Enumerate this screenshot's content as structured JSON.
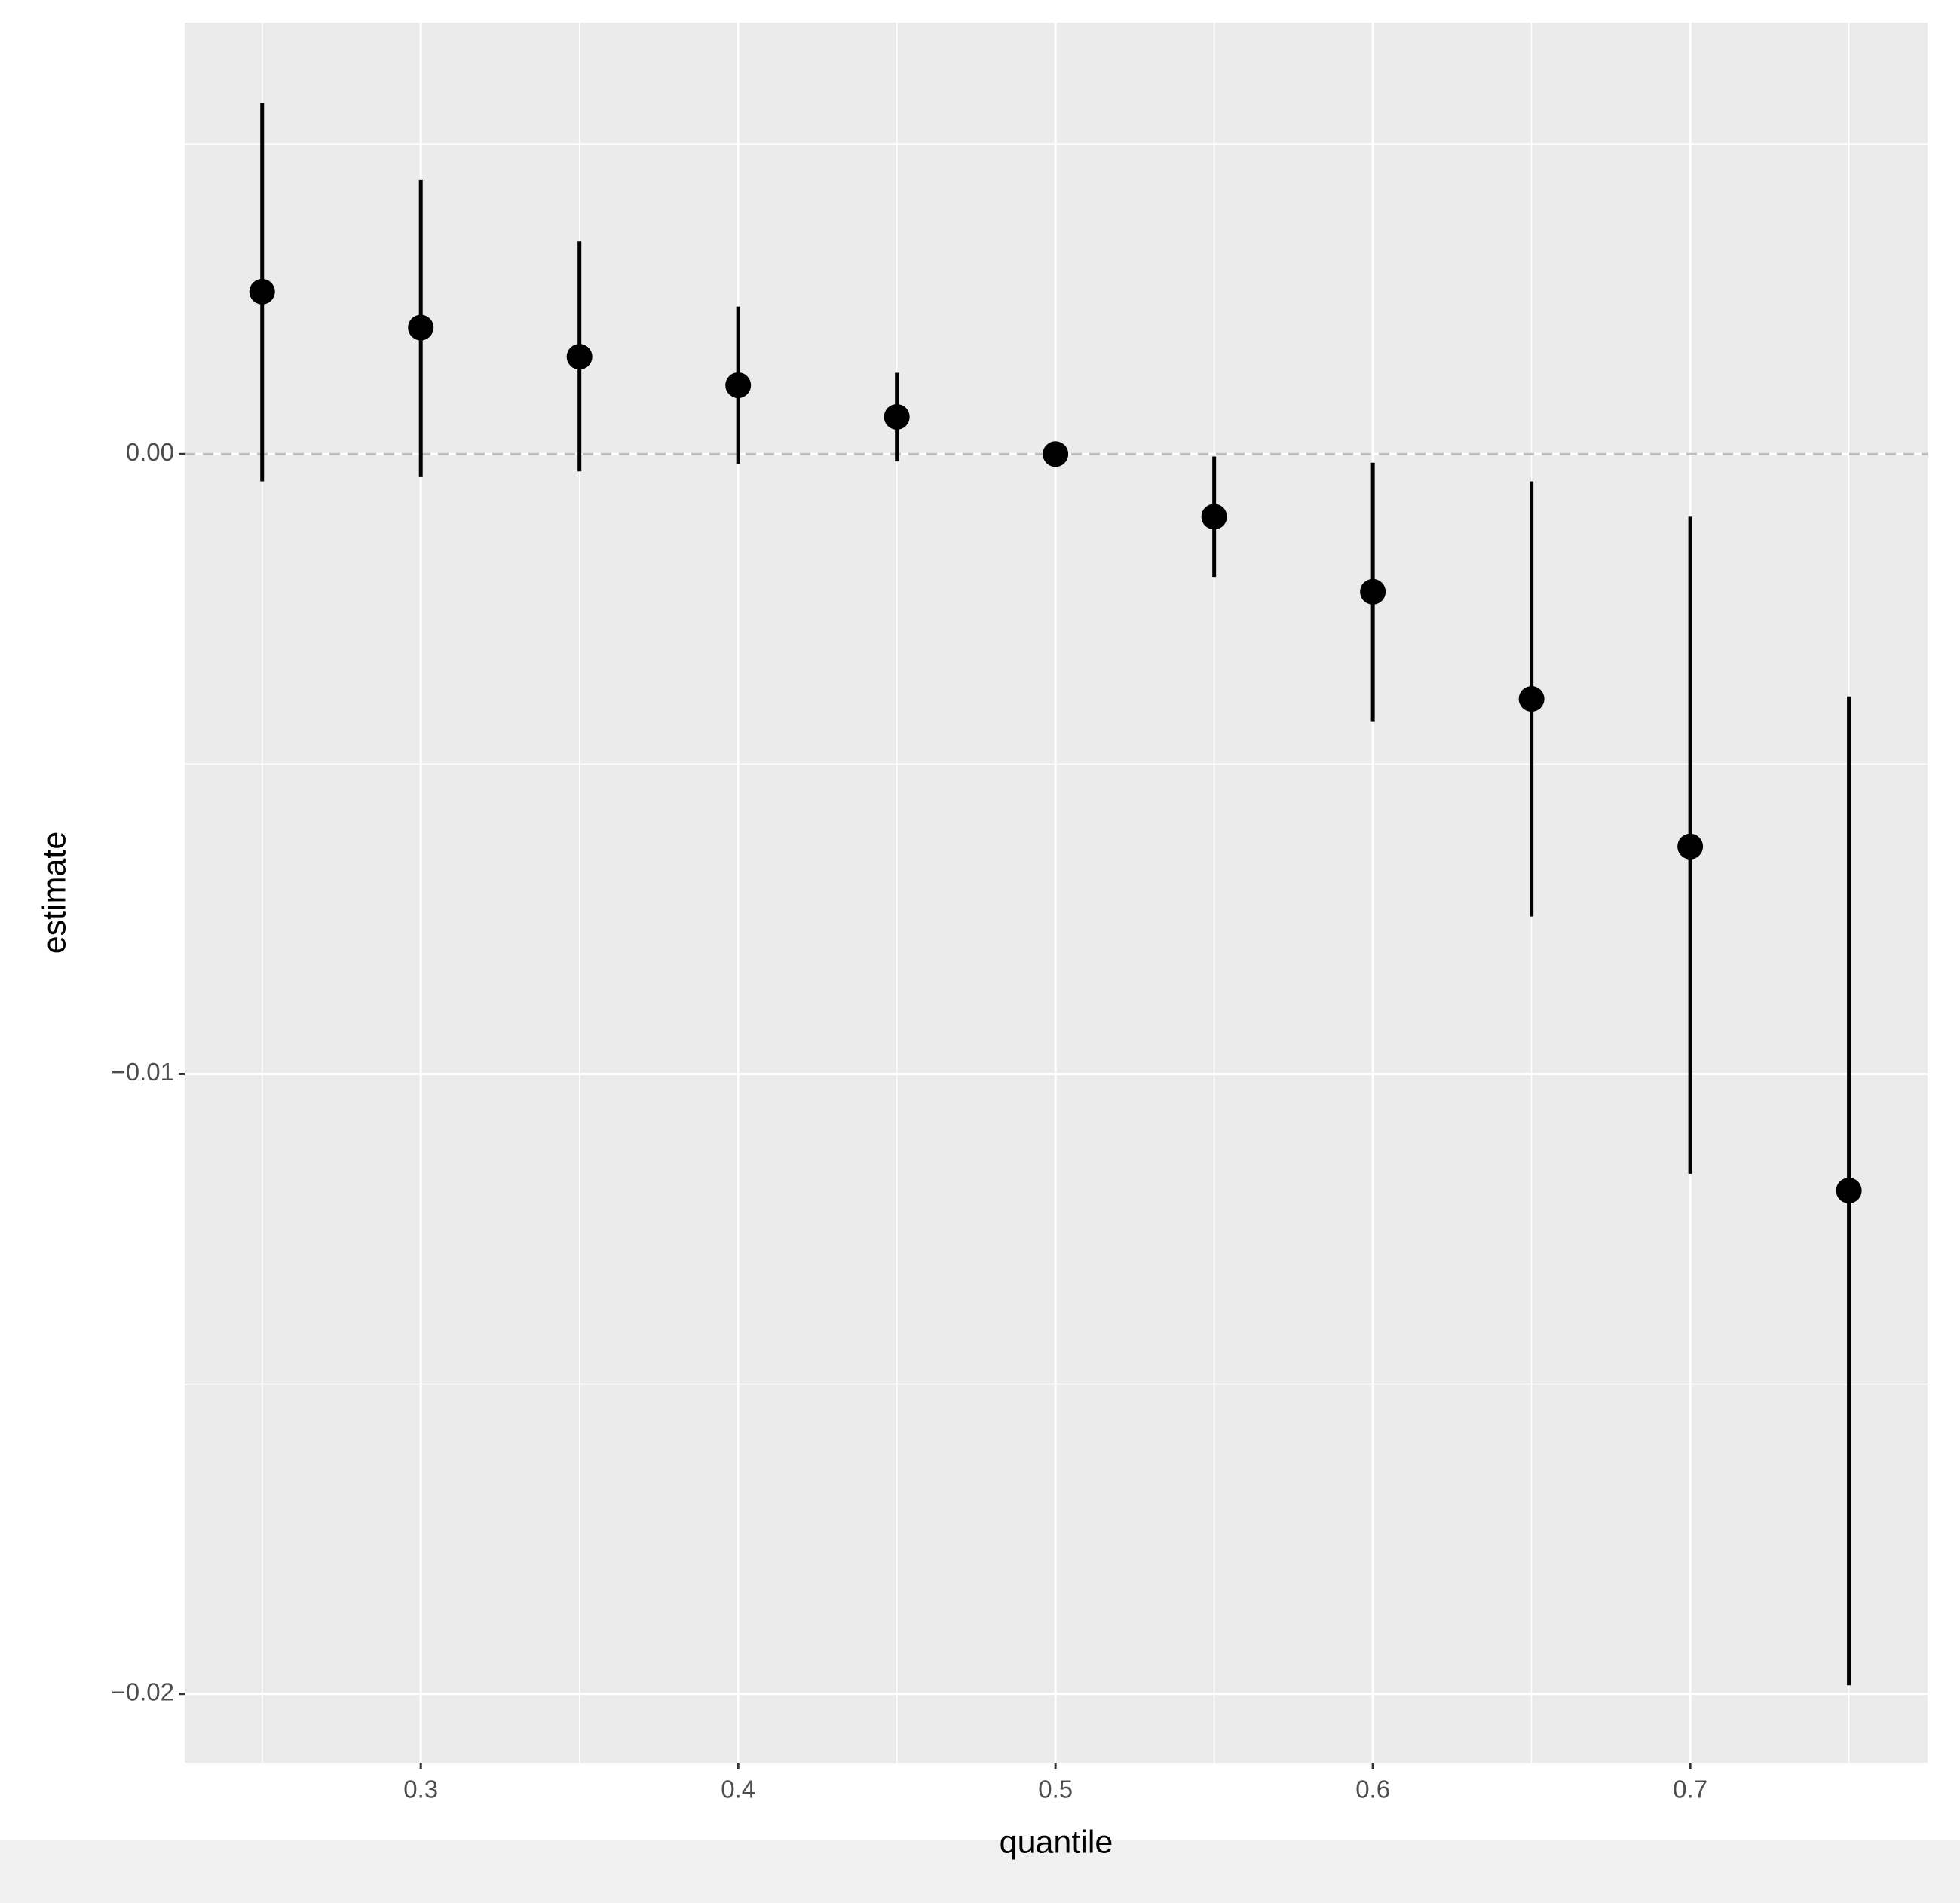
{
  "chart_data": {
    "type": "pointrange",
    "x_label": "quantile",
    "y_label": "estimate",
    "x": [
      0.25,
      0.3,
      0.35,
      0.4,
      0.45,
      0.5,
      0.55,
      0.6,
      0.65,
      0.7,
      0.75
    ],
    "series": [
      {
        "color": "#000000",
        "values": [
          0.00262,
          0.00204,
          0.00157,
          0.00111,
          0.0006,
          0,
          -0.00101,
          -0.00222,
          -0.00395,
          -0.00633,
          -0.01188
        ],
        "lower": [
          -0.00044,
          -0.00036,
          -0.00028,
          -0.00016,
          -0.00012,
          0,
          -0.00198,
          -0.00431,
          -0.00746,
          -0.01161,
          -0.01986
        ],
        "upper": [
          0.00567,
          0.00442,
          0.00343,
          0.00238,
          0.00131,
          0,
          -4e-05,
          -0.00014,
          -0.00044,
          -0.00101,
          -0.00391
        ]
      }
    ],
    "xlim": [
      0.2256,
      0.7748
    ],
    "ylim": [
      -0.02111,
      0.00696
    ],
    "xticks": [
      0.3,
      0.4,
      0.5,
      0.6,
      0.7
    ],
    "yticks": [
      {
        "value": -0.02,
        "label": "−0.02"
      },
      {
        "value": -0.01,
        "label": "−0.01"
      },
      {
        "value": 0,
        "label": "0.00"
      }
    ],
    "grid": true,
    "minor_grid": true,
    "panel_color": "#ebebeb",
    "hline": {
      "value": 0,
      "color": "#bdbdbd",
      "dashed": true
    }
  }
}
